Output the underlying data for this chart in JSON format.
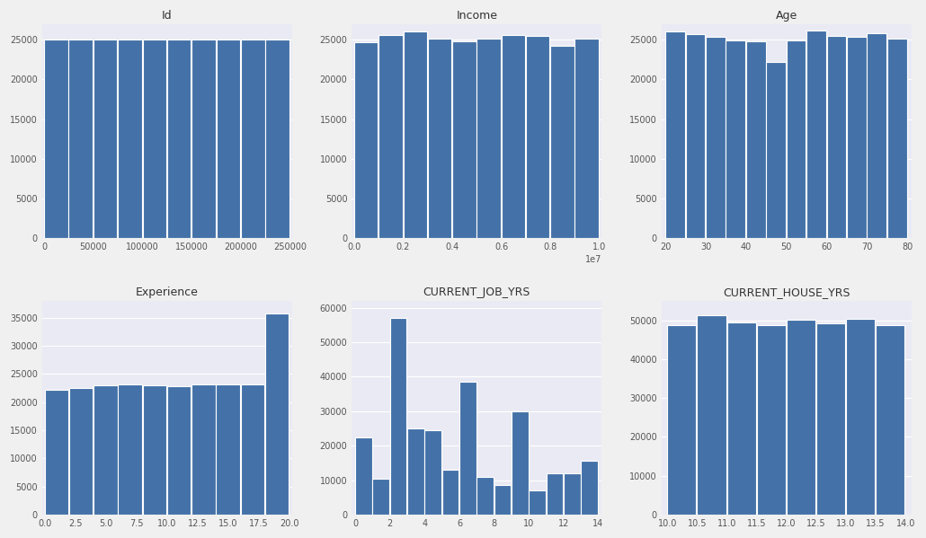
{
  "bar_color": "#4472a8",
  "bg_color": "#eaeaf4",
  "fig_facecolor": "#f0f0f0",
  "grid_color": "white",
  "plots": [
    {
      "title": "Id",
      "bin_edges": [
        0,
        25000,
        50000,
        75000,
        100000,
        125000,
        150000,
        175000,
        200000,
        225000,
        250000
      ],
      "heights": [
        25000,
        25000,
        25000,
        25000,
        25000,
        25000,
        25000,
        25000,
        25000,
        25000
      ],
      "xlim": [
        -2000,
        252000
      ],
      "ylim": [
        0,
        27000
      ],
      "xtick_labels": [
        "0",
        "50000",
        "100000",
        "150000",
        "200000",
        "250000"
      ],
      "xtick_positions": [
        0,
        50000,
        100000,
        150000,
        200000,
        250000
      ],
      "ytick_positions": [
        0,
        5000,
        10000,
        15000,
        20000,
        25000
      ],
      "ytick_labels": [
        "0",
        "5000",
        "10000",
        "15000",
        "20000",
        "25000"
      ]
    },
    {
      "title": "Income",
      "bin_edges": [
        0,
        1000000,
        2000000,
        3000000,
        4000000,
        5000000,
        6000000,
        7000000,
        8000000,
        9000000,
        10000000
      ],
      "heights": [
        24700,
        25600,
        26000,
        25200,
        24800,
        25200,
        25600,
        25500,
        24200,
        25100
      ],
      "xlim": [
        -100000,
        10100000
      ],
      "ylim": [
        0,
        27000
      ],
      "xtick_labels": [
        "0.0",
        "0.2",
        "0.4",
        "0.6",
        "0.8",
        "1.0"
      ],
      "xtick_positions": [
        0,
        2000000,
        4000000,
        6000000,
        8000000,
        10000000
      ],
      "ytick_positions": [
        0,
        5000,
        10000,
        15000,
        20000,
        25000
      ],
      "ytick_labels": [
        "0",
        "5000",
        "10000",
        "15000",
        "20000",
        "25000"
      ],
      "sci_note": "1e7"
    },
    {
      "title": "Age",
      "bin_edges": [
        20,
        25,
        30,
        35,
        40,
        45,
        50,
        55,
        60,
        65,
        70,
        75,
        80
      ],
      "heights": [
        26000,
        25700,
        25400,
        24900,
        24800,
        22200,
        24900,
        26200,
        25500,
        25400,
        25800,
        25200
      ],
      "xlim": [
        19,
        81
      ],
      "ylim": [
        0,
        27000
      ],
      "xtick_labels": [
        "20",
        "30",
        "40",
        "50",
        "60",
        "70",
        "80"
      ],
      "xtick_positions": [
        20,
        30,
        40,
        50,
        60,
        70,
        80
      ],
      "ytick_positions": [
        0,
        5000,
        10000,
        15000,
        20000,
        25000
      ],
      "ytick_labels": [
        "0",
        "5000",
        "10000",
        "15000",
        "20000",
        "25000"
      ]
    },
    {
      "title": "Experience",
      "bin_edges": [
        0.0,
        2.0,
        4.0,
        6.0,
        8.0,
        10.0,
        12.0,
        14.0,
        16.0,
        18.0,
        20.0
      ],
      "heights": [
        22200,
        22500,
        23000,
        23100,
        23000,
        22900,
        23100,
        23200,
        23200,
        35700
      ],
      "xlim": [
        -0.2,
        20.2
      ],
      "ylim": [
        0,
        38000
      ],
      "xtick_labels": [
        "0.0",
        "2.5",
        "5.0",
        "7.5",
        "10.0",
        "12.5",
        "15.0",
        "17.5",
        "20.0"
      ],
      "xtick_positions": [
        0.0,
        2.5,
        5.0,
        7.5,
        10.0,
        12.5,
        15.0,
        17.5,
        20.0
      ],
      "ytick_positions": [
        0,
        5000,
        10000,
        15000,
        20000,
        25000,
        30000,
        35000
      ],
      "ytick_labels": [
        "0",
        "5000",
        "10000",
        "15000",
        "20000",
        "25000",
        "30000",
        "35000"
      ]
    },
    {
      "title": "CURRENT_JOB_YRS",
      "bin_edges": [
        0,
        1,
        2,
        3,
        4,
        5,
        6,
        7,
        8,
        9,
        10,
        11,
        12,
        13,
        14
      ],
      "heights": [
        22500,
        10500,
        57000,
        25000,
        24500,
        13000,
        38500,
        11000,
        8500,
        30000,
        7000,
        12000,
        12000,
        15500
      ],
      "xlim": [
        -0.2,
        14.2
      ],
      "ylim": [
        0,
        62000
      ],
      "xtick_labels": [
        "0",
        "2",
        "4",
        "6",
        "8",
        "10",
        "12",
        "14"
      ],
      "xtick_positions": [
        0,
        2,
        4,
        6,
        8,
        10,
        12,
        14
      ],
      "ytick_positions": [
        0,
        10000,
        20000,
        30000,
        40000,
        50000,
        60000
      ],
      "ytick_labels": [
        "0",
        "10000",
        "20000",
        "30000",
        "40000",
        "50000",
        "60000"
      ]
    },
    {
      "title": "CURRENT_HOUSE_YRS",
      "bin_edges": [
        10.0,
        10.5,
        11.0,
        11.5,
        12.0,
        12.5,
        13.0,
        13.5,
        14.0
      ],
      "heights": [
        48700,
        51200,
        49500,
        48800,
        50200,
        49300,
        50400,
        48700
      ],
      "xlim": [
        9.9,
        14.1
      ],
      "ylim": [
        0,
        55000
      ],
      "xtick_labels": [
        "10.0",
        "10.5",
        "11.0",
        "11.5",
        "12.0",
        "12.5",
        "13.0",
        "13.5",
        "14.0"
      ],
      "xtick_positions": [
        10.0,
        10.5,
        11.0,
        11.5,
        12.0,
        12.5,
        13.0,
        13.5,
        14.0
      ],
      "ytick_positions": [
        0,
        10000,
        20000,
        30000,
        40000,
        50000
      ],
      "ytick_labels": [
        "0",
        "10000",
        "20000",
        "30000",
        "40000",
        "50000"
      ]
    }
  ]
}
